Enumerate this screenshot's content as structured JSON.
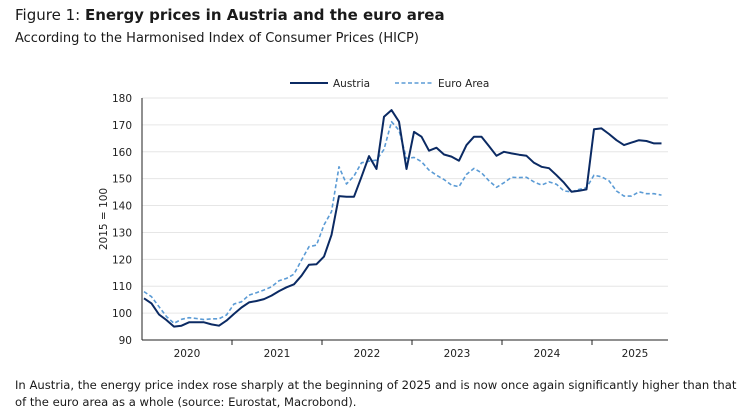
{
  "figure": {
    "label": "Figure 1:",
    "title": "Energy prices in Austria and the euro area",
    "subtitle": "According to the Harmonised Index of Consumer Prices (HICP)",
    "note": "In Austria, the energy price index rose sharply at the beginning of 2025 and is now once again significantly higher than that of the euro area as a whole (source: Eurostat, Macrobond)."
  },
  "chart_data": {
    "type": "line",
    "title": "Energy prices in Austria and the euro area",
    "xlabel": "",
    "ylabel": "2015 = 100",
    "ylim": [
      90,
      180
    ],
    "yticks": [
      90,
      100,
      110,
      120,
      130,
      140,
      150,
      160,
      170,
      180
    ],
    "xtick_labels": [
      "2020",
      "2021",
      "2022",
      "2023",
      "2024",
      "2025"
    ],
    "x_start": "2020-01",
    "frequency": "monthly",
    "grid": true,
    "legend_position": "top-center",
    "series": [
      {
        "name": "Austria",
        "color": "#0b2a63",
        "style": "solid",
        "values": [
          105.5,
          103.6,
          99.5,
          97.4,
          95.0,
          95.3,
          96.6,
          96.6,
          96.6,
          95.8,
          95.3,
          97.2,
          99.7,
          102.1,
          104.0,
          104.5,
          105.2,
          106.5,
          108.2,
          109.6,
          110.7,
          113.9,
          118.0,
          118.2,
          121.0,
          129.1,
          143.5,
          143.3,
          143.3,
          150.7,
          158.4,
          153.6,
          173.0,
          175.5,
          171.2,
          153.6,
          167.4,
          165.6,
          160.4,
          161.5,
          159.0,
          158.2,
          156.7,
          162.5,
          165.6,
          165.6,
          162.1,
          158.5,
          160.0,
          159.4,
          158.9,
          158.5,
          155.9,
          154.4,
          153.9,
          151.3,
          148.5,
          145.1,
          145.5,
          146.0,
          168.4,
          168.7,
          166.6,
          164.3,
          162.5,
          163.4,
          164.3,
          164.0,
          163.1,
          163.1
        ]
      },
      {
        "name": "Euro Area",
        "color": "#5b9bd5",
        "style": "dashed",
        "values": [
          108.0,
          106.1,
          102.4,
          98.7,
          96.2,
          97.7,
          98.3,
          98.0,
          97.6,
          97.9,
          97.9,
          99.3,
          103.4,
          104.2,
          106.7,
          107.6,
          108.6,
          109.8,
          112.0,
          112.9,
          114.5,
          119.7,
          124.7,
          125.3,
          132.8,
          137.7,
          154.4,
          148.0,
          151.0,
          155.9,
          156.5,
          156.9,
          160.9,
          171.2,
          168.0,
          157.5,
          157.9,
          156.3,
          153.2,
          151.3,
          149.7,
          147.6,
          147.0,
          151.6,
          153.8,
          152.2,
          149.2,
          146.8,
          148.5,
          150.5,
          150.4,
          150.5,
          148.8,
          147.6,
          148.8,
          147.9,
          145.4,
          145.1,
          146.0,
          146.6,
          151.3,
          150.7,
          149.2,
          145.4,
          143.5,
          143.5,
          145.1,
          144.4,
          144.4,
          143.9
        ]
      }
    ]
  }
}
